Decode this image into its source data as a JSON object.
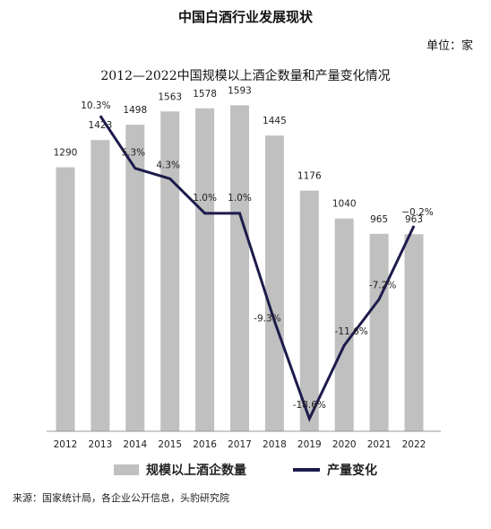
{
  "header": {
    "main_title": "中国白酒行业发展现状",
    "unit_label": "单位：家"
  },
  "chart_data": {
    "type": "bar",
    "title": "2012—2022中国规模以上酒企数量和产量变化情况",
    "categories": [
      "2012",
      "2013",
      "2014",
      "2015",
      "2016",
      "2017",
      "2018",
      "2019",
      "2020",
      "2021",
      "2022"
    ],
    "series": [
      {
        "name": "规模以上酒企数量",
        "type": "bar",
        "color": "#c0c0c0",
        "values": [
          1290,
          1423,
          1498,
          1563,
          1578,
          1593,
          1445,
          1176,
          1040,
          965,
          963
        ],
        "labels": [
          "1290",
          "1423",
          "1498",
          "1563",
          "1578",
          "1593",
          "1445",
          "1176",
          "1040",
          "965",
          "963"
        ]
      },
      {
        "name": "产量变化",
        "type": "line",
        "color": "#1d1b4b",
        "x": [
          "2013",
          "2014",
          "2015",
          "2016",
          "2017",
          "2018",
          "2019",
          "2020",
          "2021",
          "2022"
        ],
        "values": [
          10.3,
          5.3,
          4.3,
          1.0,
          1.0,
          -9.3,
          -18.6,
          -11.6,
          -7.2,
          -0.2
        ],
        "labels": [
          "10.3%",
          "5.3%",
          "4.3%",
          "1.0%",
          "1.0%",
          "-9.3%",
          "-18.6%",
          "-11.6%",
          "-7.2%",
          "−0.2%"
        ]
      }
    ],
    "bar_ylim": [
      0,
      1700
    ],
    "line_ylim": [
      -19.8,
      13.4
    ],
    "grid": false,
    "legend": "bottom"
  },
  "source_note": "来源：国家统计局，各企业公开信息，头豹研究院"
}
